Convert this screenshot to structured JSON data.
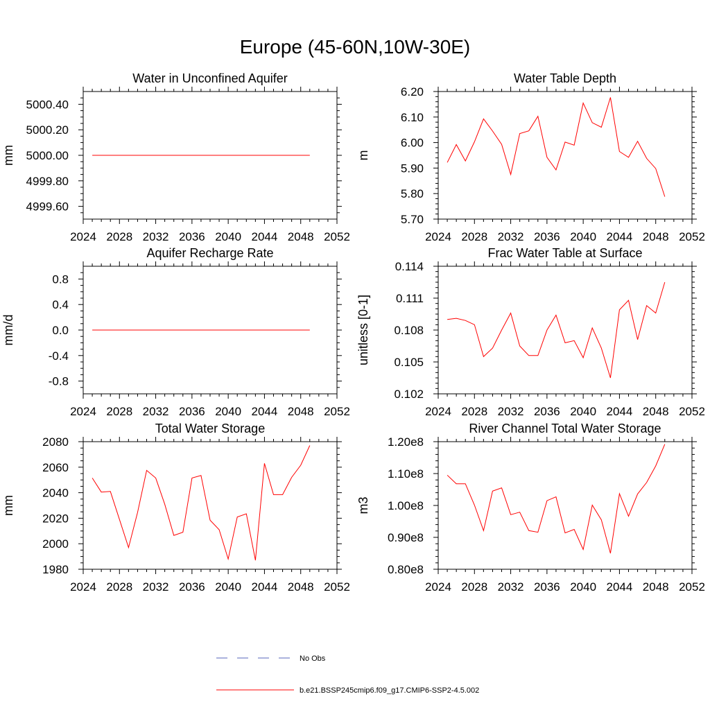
{
  "page_title": "Europe (45-60N,10W-30E)",
  "legend": {
    "obs_label": "No Obs",
    "model_label": "b.e21.BSSP245cmip6.f09_g17.CMIP6-SSP2-4.5.002",
    "obs_color": "#5566bb",
    "model_color": "#ff0000"
  },
  "chart_data": [
    {
      "type": "line",
      "title": "Water in Unconfined Aquifer",
      "ylabel": "mm",
      "xlim": [
        2024,
        2052
      ],
      "ylim": [
        4999.5,
        5000.5
      ],
      "yticks": [
        4999.6,
        4999.8,
        5000.0,
        5000.2,
        5000.4
      ],
      "ytick_labels": [
        "4999.60",
        "4999.80",
        "5000.00",
        "5000.20",
        "5000.40"
      ],
      "yminor_step": 0.05,
      "xticks": [
        2024,
        2028,
        2032,
        2036,
        2040,
        2044,
        2048,
        2052
      ],
      "x": [
        2025,
        2026,
        2027,
        2028,
        2029,
        2030,
        2031,
        2032,
        2033,
        2034,
        2035,
        2036,
        2037,
        2038,
        2039,
        2040,
        2041,
        2042,
        2043,
        2044,
        2045,
        2046,
        2047,
        2048,
        2049
      ],
      "series": [
        {
          "values": [
            5000.0,
            5000.0,
            5000.0,
            5000.0,
            5000.0,
            5000.0,
            5000.0,
            5000.0,
            5000.0,
            5000.0,
            5000.0,
            5000.0,
            5000.0,
            5000.0,
            5000.0,
            5000.0,
            5000.0,
            5000.0,
            5000.0,
            5000.0,
            5000.0,
            5000.0,
            5000.0,
            5000.0,
            5000.0
          ]
        }
      ]
    },
    {
      "type": "line",
      "title": "Water Table Depth",
      "ylabel": "m",
      "xlim": [
        2024,
        2052
      ],
      "ylim": [
        5.7,
        6.2
      ],
      "yticks": [
        5.7,
        5.8,
        5.9,
        6.0,
        6.1,
        6.2
      ],
      "ytick_labels": [
        "5.70",
        "5.80",
        "5.90",
        "6.00",
        "6.10",
        "6.20"
      ],
      "yminor_step": 0.02,
      "xticks": [
        2024,
        2028,
        2032,
        2036,
        2040,
        2044,
        2048,
        2052
      ],
      "x": [
        2025,
        2026,
        2027,
        2028,
        2029,
        2030,
        2031,
        2032,
        2033,
        2034,
        2035,
        2036,
        2037,
        2038,
        2039,
        2040,
        2041,
        2042,
        2043,
        2044,
        2045,
        2046,
        2047,
        2048,
        2049
      ],
      "series": [
        {
          "values": [
            5.922,
            5.992,
            5.928,
            6.003,
            6.093,
            6.045,
            5.993,
            5.875,
            6.035,
            6.046,
            6.103,
            5.942,
            5.893,
            6.002,
            5.99,
            6.155,
            6.078,
            6.06,
            6.177,
            5.965,
            5.942,
            6.005,
            5.938,
            5.898,
            5.788
          ]
        }
      ]
    },
    {
      "type": "line",
      "title": "Aquifer Recharge Rate",
      "ylabel": "mm/d",
      "xlim": [
        2024,
        2052
      ],
      "ylim": [
        -1.0,
        1.0
      ],
      "yticks": [
        -0.8,
        -0.4,
        0.0,
        0.4,
        0.8
      ],
      "ytick_labels": [
        "-0.8",
        "-0.4",
        "0.0",
        "0.4",
        "0.8"
      ],
      "yminor_step": 0.1,
      "xticks": [
        2024,
        2028,
        2032,
        2036,
        2040,
        2044,
        2048,
        2052
      ],
      "x": [
        2025,
        2026,
        2027,
        2028,
        2029,
        2030,
        2031,
        2032,
        2033,
        2034,
        2035,
        2036,
        2037,
        2038,
        2039,
        2040,
        2041,
        2042,
        2043,
        2044,
        2045,
        2046,
        2047,
        2048,
        2049
      ],
      "series": [
        {
          "values": [
            0,
            0,
            0,
            0,
            0,
            0,
            0,
            0,
            0,
            0,
            0,
            0,
            0,
            0,
            0,
            0,
            0,
            0,
            0,
            0,
            0,
            0,
            0,
            0,
            0
          ]
        }
      ]
    },
    {
      "type": "line",
      "title": "Frac Water Table at Surface",
      "ylabel": "unitless [0-1]",
      "xlim": [
        2024,
        2052
      ],
      "ylim": [
        0.102,
        0.114
      ],
      "yticks": [
        0.102,
        0.105,
        0.108,
        0.111,
        0.114
      ],
      "ytick_labels": [
        "0.102",
        "0.105",
        "0.108",
        "0.111",
        "0.114"
      ],
      "yminor_step": 0.0005,
      "xticks": [
        2024,
        2028,
        2032,
        2036,
        2040,
        2044,
        2048,
        2052
      ],
      "x": [
        2025,
        2026,
        2027,
        2028,
        2029,
        2030,
        2031,
        2032,
        2033,
        2034,
        2035,
        2036,
        2037,
        2038,
        2039,
        2040,
        2041,
        2042,
        2043,
        2044,
        2045,
        2046,
        2047,
        2048,
        2049
      ],
      "series": [
        {
          "values": [
            0.109,
            0.1091,
            0.1089,
            0.1085,
            0.1055,
            0.1063,
            0.108,
            0.1096,
            0.1065,
            0.1056,
            0.1056,
            0.108,
            0.1094,
            0.1068,
            0.107,
            0.1054,
            0.1082,
            0.1063,
            0.1035,
            0.1099,
            0.1108,
            0.1071,
            0.1103,
            0.1096,
            0.1125
          ]
        }
      ]
    },
    {
      "type": "line",
      "title": "Total Water Storage",
      "ylabel": "mm",
      "xlim": [
        2024,
        2052
      ],
      "ylim": [
        1980,
        2080
      ],
      "yticks": [
        1980,
        2000,
        2020,
        2040,
        2060,
        2080
      ],
      "ytick_labels": [
        "1980",
        "2000",
        "2020",
        "2040",
        "2060",
        "2080"
      ],
      "yminor_step": 5,
      "xticks": [
        2024,
        2028,
        2032,
        2036,
        2040,
        2044,
        2048,
        2052
      ],
      "x": [
        2025,
        2026,
        2027,
        2028,
        2029,
        2030,
        2031,
        2032,
        2033,
        2034,
        2035,
        2036,
        2037,
        2038,
        2039,
        2040,
        2041,
        2042,
        2043,
        2044,
        2045,
        2046,
        2047,
        2048,
        2049
      ],
      "series": [
        {
          "values": [
            2051.5,
            2040.5,
            2041.0,
            2019.0,
            1997.0,
            2024.5,
            2057.5,
            2051.5,
            2031.0,
            2006.5,
            2009.0,
            2051.5,
            2053.5,
            2018.5,
            2011.0,
            1988.0,
            2021.0,
            2023.5,
            1987.0,
            2063.0,
            2038.5,
            2038.5,
            2052.0,
            2061.5,
            2077.0
          ]
        }
      ]
    },
    {
      "type": "line",
      "title": "River Channel Total Water Storage",
      "ylabel": "m3",
      "xlim": [
        2024,
        2052
      ],
      "ylim": [
        0.8,
        1.2
      ],
      "yticks": [
        0.8,
        0.9,
        1.0,
        1.1,
        1.2
      ],
      "ytick_labels": [
        "0.80e8",
        "0.90e8",
        "1.00e8",
        "1.10e8",
        "1.20e8"
      ],
      "yminor_step": 0.02,
      "xticks": [
        2024,
        2028,
        2032,
        2036,
        2040,
        2044,
        2048,
        2052
      ],
      "x": [
        2025,
        2026,
        2027,
        2028,
        2029,
        2030,
        2031,
        2032,
        2033,
        2034,
        2035,
        2036,
        2037,
        2038,
        2039,
        2040,
        2041,
        2042,
        2043,
        2044,
        2045,
        2046,
        2047,
        2048,
        2049
      ],
      "series": [
        {
          "values": [
            1.095,
            1.068,
            1.068,
            1.001,
            0.921,
            1.045,
            1.055,
            0.971,
            0.979,
            0.921,
            0.916,
            1.015,
            1.027,
            0.914,
            0.925,
            0.862,
            1.001,
            0.955,
            0.85,
            1.037,
            0.966,
            1.036,
            1.072,
            1.124,
            1.192
          ]
        }
      ]
    }
  ]
}
